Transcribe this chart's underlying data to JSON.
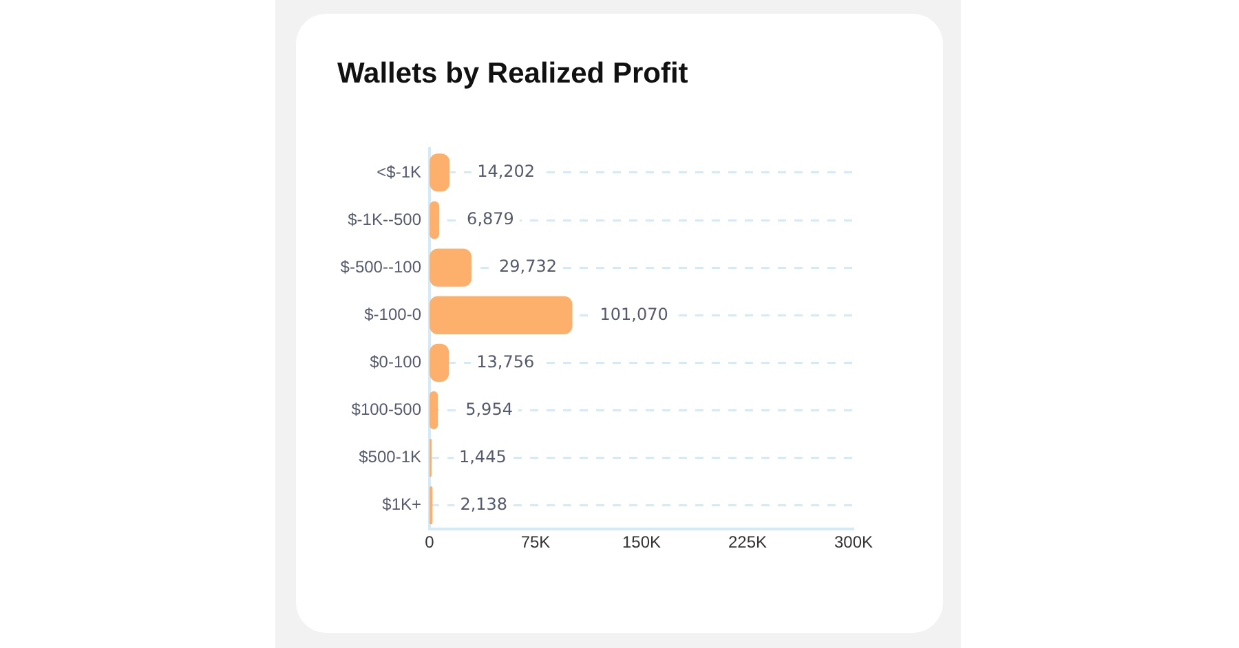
{
  "chart_data": {
    "type": "bar",
    "orientation": "horizontal",
    "title": "Wallets by Realized Profit",
    "categories": [
      "<$-1K",
      "$-1K--500",
      "$-500--100",
      "$-100-0",
      "$0-100",
      "$100-500",
      "$500-1K",
      "$1K+"
    ],
    "values": [
      14202,
      6879,
      29732,
      101070,
      13756,
      5954,
      1445,
      2138
    ],
    "color": "#fdb06c",
    "xlim": [
      0,
      300000
    ],
    "xticks": [
      {
        "value": 0,
        "label": "0"
      },
      {
        "value": 75000,
        "label": "75K"
      },
      {
        "value": 150000,
        "label": "150K"
      },
      {
        "value": 225000,
        "label": "225K"
      },
      {
        "value": 300000,
        "label": "300K"
      }
    ],
    "value_labels": [
      "14,202",
      "6,879",
      "29,732",
      "101,070",
      "13,756",
      "5,954",
      "1,445",
      "2,138"
    ],
    "grid": "y",
    "legend": false
  }
}
